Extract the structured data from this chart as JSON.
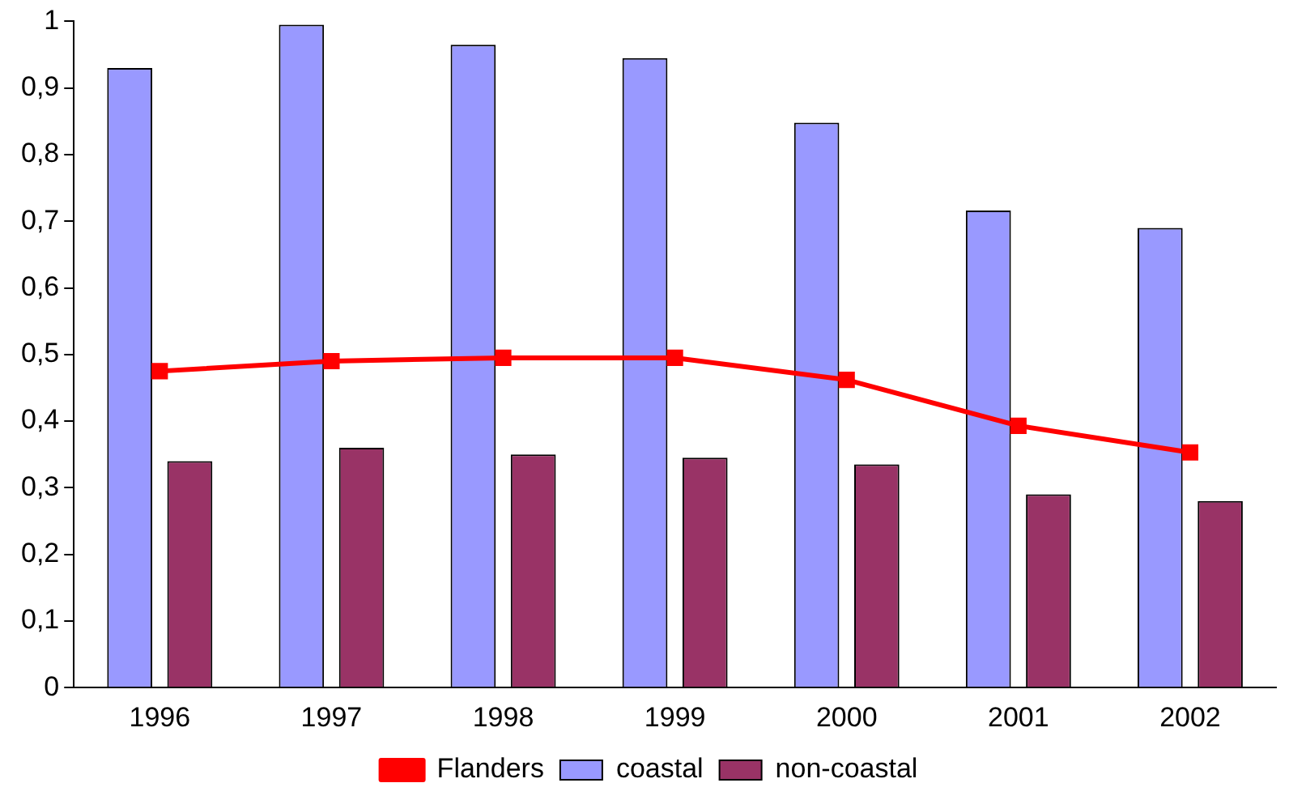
{
  "chart_data": {
    "type": "bar",
    "categories": [
      "1996",
      "1997",
      "1998",
      "1999",
      "2000",
      "2001",
      "2002"
    ],
    "series": [
      {
        "name": "coastal",
        "color": "#9999ff",
        "values": [
          0.93,
          0.995,
          0.965,
          0.945,
          0.848,
          0.716,
          0.69
        ]
      },
      {
        "name": "non-coastal",
        "color": "#993366",
        "values": [
          0.34,
          0.36,
          0.35,
          0.345,
          0.335,
          0.29,
          0.28
        ]
      },
      {
        "name": "Flanders",
        "type": "line",
        "color": "#ff0000",
        "values": [
          0.475,
          0.49,
          0.495,
          0.495,
          0.462,
          0.393,
          0.353
        ]
      }
    ],
    "ylim": [
      0,
      1
    ],
    "yticks": [
      0,
      {
        "value": 0.1,
        "label": "0,1"
      },
      {
        "value": 0.2,
        "label": "0,2"
      },
      {
        "value": 0.3,
        "label": "0,3"
      },
      {
        "value": 0.4,
        "label": "0,4"
      },
      {
        "value": 0.5,
        "label": "0,5"
      },
      {
        "value": 0.6,
        "label": "0,6"
      },
      {
        "value": 0.7,
        "label": "0,7"
      },
      {
        "value": 0.8,
        "label": "0,8"
      },
      {
        "value": 0.9,
        "label": "0,9"
      },
      1
    ],
    "grid": false,
    "legend": "bottom",
    "marker": "square",
    "line_style": "solid"
  }
}
